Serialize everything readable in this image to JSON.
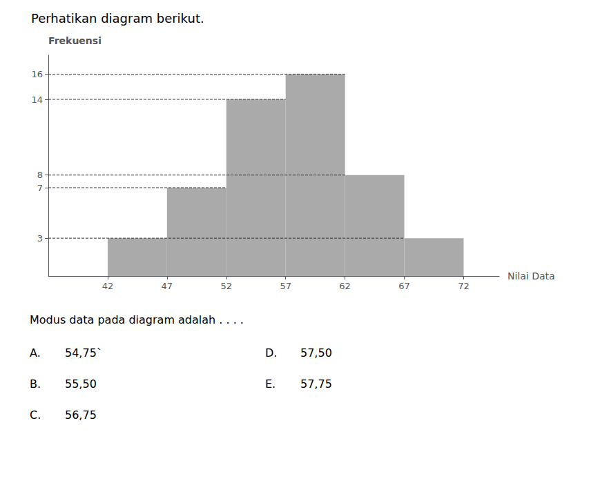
{
  "chart_data": {
    "type": "histogram",
    "title": "Perhatikan diagram berikut.",
    "xlabel": "Nilai Data",
    "ylabel": "Frekuensi",
    "bins": [
      42,
      47,
      52,
      57,
      62,
      67,
      72
    ],
    "values": [
      3,
      7,
      14,
      16,
      8,
      3
    ],
    "color": "#aaaaaa",
    "xlim": [
      37,
      75
    ],
    "xticks": [
      42,
      47,
      52,
      57,
      62,
      67,
      72
    ],
    "ylim": [
      0,
      17.5
    ],
    "yticks": [
      3,
      7,
      8,
      14,
      16
    ],
    "grid": false,
    "hlines": [
      {
        "y": 3,
        "x_end": 67
      },
      {
        "y": 7,
        "x_end": 52
      },
      {
        "y": 8,
        "x_end": 62
      },
      {
        "y": 14,
        "x_end": 57
      },
      {
        "y": 16,
        "x_end": 62
      }
    ],
    "question": "Modus data pada diagram adalah . . . .",
    "options": [
      {
        "label": "A.",
        "text": "54,75`"
      },
      {
        "label": "B.",
        "text": "55,50"
      },
      {
        "label": "C.",
        "text": "56,75"
      },
      {
        "label": "D.",
        "text": "57,50"
      },
      {
        "label": "E.",
        "text": "57,75"
      }
    ]
  }
}
